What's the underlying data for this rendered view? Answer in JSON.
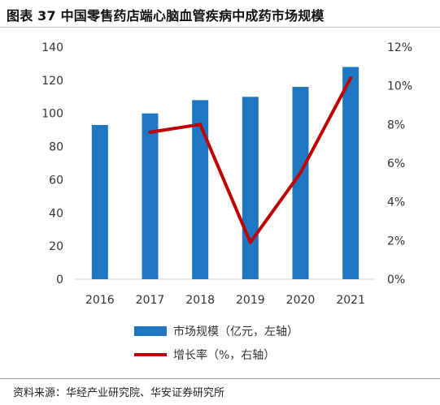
{
  "title": "图表 37 中国零售药店端心脑血管疾病中成药市场规模",
  "source": "资料来源：华经产业研究院、华安证券研究所",
  "colors": {
    "bar": "#1f77c4",
    "line": "#c00000",
    "axis": "#d0d0d0",
    "text": "#333333"
  },
  "chart_data": {
    "type": "bar",
    "categories": [
      "2016",
      "2017",
      "2018",
      "2019",
      "2020",
      "2021"
    ],
    "series": [
      {
        "name": "市场规模（亿元，左轴）",
        "type": "bar",
        "axis": "left",
        "values": [
          93,
          100,
          108,
          110,
          116,
          128
        ]
      },
      {
        "name": "增长率（%，右轴）",
        "type": "line",
        "axis": "right",
        "values": [
          null,
          7.6,
          8.0,
          1.9,
          5.5,
          10.4
        ]
      }
    ],
    "y_left": {
      "min": 0,
      "max": 140,
      "ticks": [
        0,
        20,
        40,
        60,
        80,
        100,
        120,
        140
      ]
    },
    "y_right": {
      "min": 0,
      "max": 12,
      "ticks": [
        "0%",
        "2%",
        "4%",
        "6%",
        "8%",
        "10%",
        "12%"
      ]
    },
    "grid": false,
    "legend_position": "bottom"
  }
}
